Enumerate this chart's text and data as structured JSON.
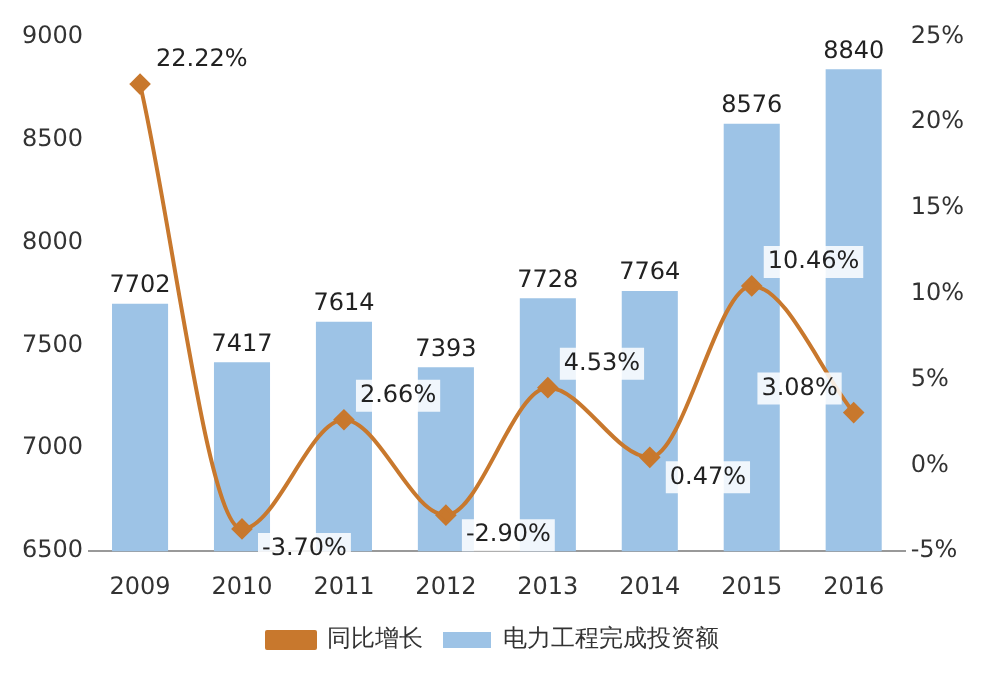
{
  "chart_data": {
    "type": "bar",
    "categories": [
      "2009",
      "2010",
      "2011",
      "2012",
      "2013",
      "2014",
      "2015",
      "2016"
    ],
    "series": [
      {
        "name": "电力工程完成投资额",
        "color": "#9dc3e6",
        "values": [
          7702,
          7417,
          7614,
          7393,
          7728,
          7764,
          8576,
          8840
        ],
        "value_labels": [
          "7702",
          "7417",
          "7614",
          "7393",
          "7728",
          "7764",
          "8576",
          "8840"
        ]
      },
      {
        "name": "同比增长",
        "type": "line",
        "axis": "y2",
        "color": "#c8782d",
        "marker": "diamond",
        "values": [
          22.22,
          -3.7,
          2.66,
          -2.9,
          4.53,
          0.47,
          10.46,
          3.08
        ],
        "value_labels": [
          "22.22%",
          "-3.70%",
          "2.66%",
          "-2.90%",
          "4.53%",
          "0.47%",
          "10.46%",
          "3.08%"
        ]
      }
    ],
    "ylim": [
      6500,
      9000
    ],
    "yticks": [
      6500,
      7000,
      7500,
      8000,
      8500,
      9000
    ],
    "y2lim": [
      -5,
      25
    ],
    "y2ticks": [
      {
        "value": -5,
        "label": "-5%"
      },
      {
        "value": 0,
        "label": "0%"
      },
      {
        "value": 5,
        "label": "5%"
      },
      {
        "value": 10,
        "label": "10%"
      },
      {
        "value": 15,
        "label": "15%"
      },
      {
        "value": 20,
        "label": "20%"
      },
      {
        "value": 25,
        "label": "25%"
      }
    ],
    "legend": "bottom",
    "grid": false
  }
}
